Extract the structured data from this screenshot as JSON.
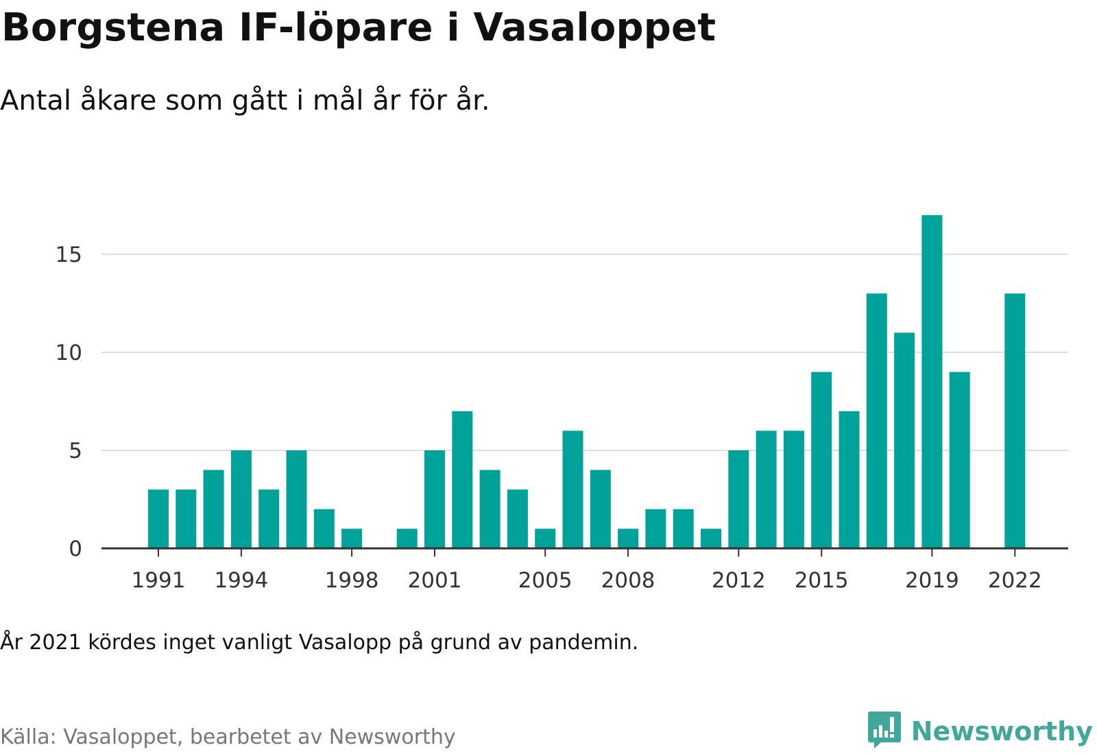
{
  "title": "Borgstena IF-löpare i Vasaloppet",
  "subtitle": "Antal åkare som gått i mål år för år.",
  "note": "År 2021 kördes inget vanligt Vasalopp på grund av pandemin.",
  "source": "Källa: Vasaloppet, bearbetet av Newsworthy",
  "brand": {
    "name": "Newsworthy",
    "icon": "newsworthy-logo-icon",
    "color": "#3fa89a"
  },
  "chart_data": {
    "type": "bar",
    "title": "Borgstena IF-löpare i Vasaloppet",
    "subtitle": "Antal åkare som gått i mål år för år.",
    "xlabel": "",
    "ylabel": "",
    "categories": [
      1991,
      1992,
      1993,
      1994,
      1995,
      1996,
      1997,
      1998,
      1999,
      2000,
      2001,
      2002,
      2003,
      2004,
      2005,
      2006,
      2007,
      2008,
      2009,
      2010,
      2011,
      2012,
      2013,
      2014,
      2015,
      2016,
      2017,
      2018,
      2019,
      2020,
      2021,
      2022
    ],
    "values": [
      3,
      3,
      4,
      5,
      3,
      5,
      2,
      1,
      0,
      1,
      5,
      7,
      4,
      3,
      1,
      6,
      4,
      1,
      2,
      2,
      1,
      5,
      6,
      6,
      9,
      7,
      13,
      11,
      17,
      9,
      null,
      13
    ],
    "x_tick_labels": [
      "1991",
      "1994",
      "1998",
      "2001",
      "2005",
      "2008",
      "2012",
      "2015",
      "2019",
      "2022"
    ],
    "y_ticks": [
      0,
      5,
      10,
      15
    ],
    "ylim": [
      0,
      17
    ],
    "grid": true,
    "bar_color": "#00a29a",
    "gridline_color": "#dddddd",
    "baseline_color": "#333333"
  }
}
